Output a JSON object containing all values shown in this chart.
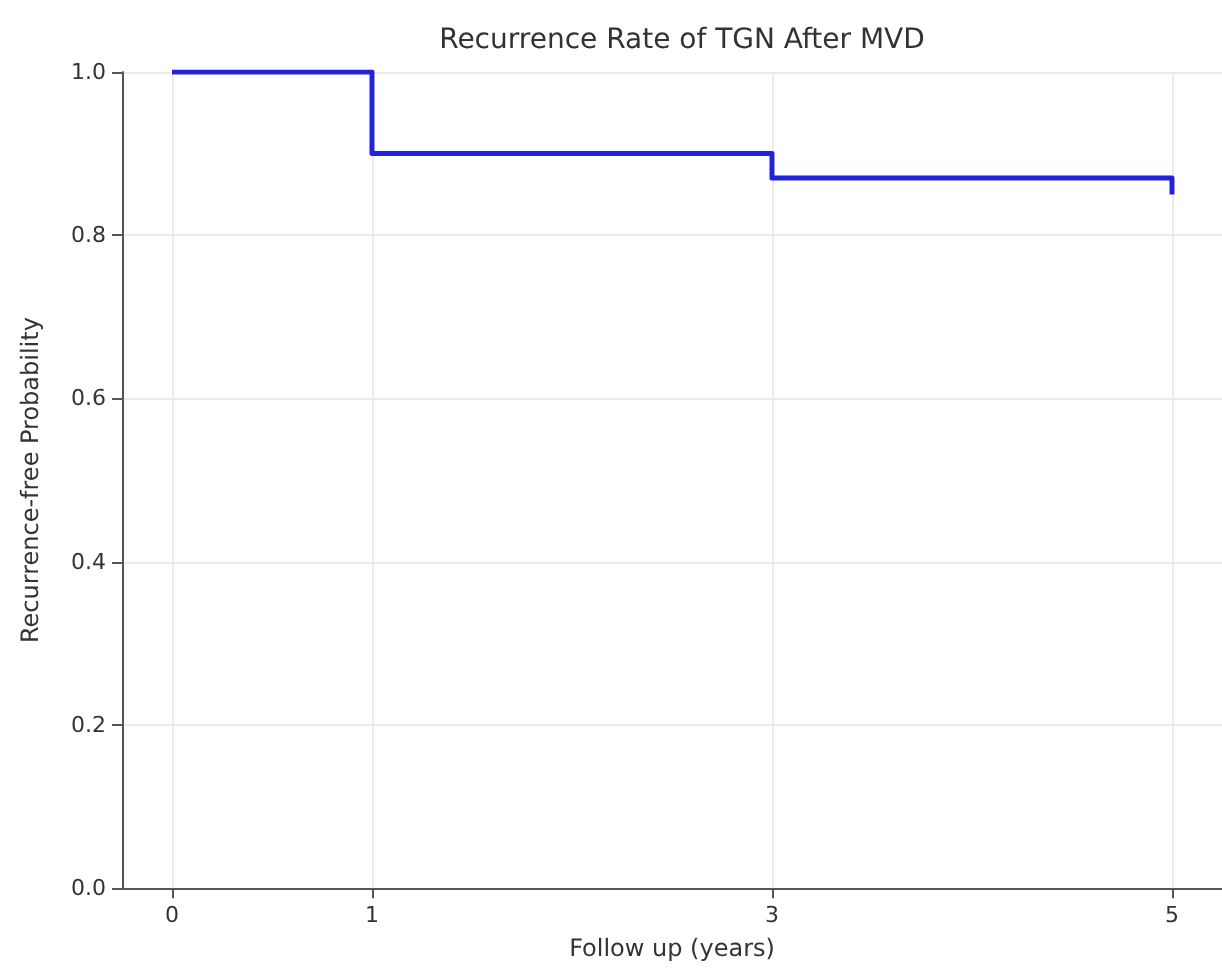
{
  "chart_data": {
    "type": "step",
    "title": "Recurrence Rate of TGN After MVD",
    "xlabel": "Follow up (years)",
    "ylabel": "Recurrence-free Probability",
    "x": [
      0,
      1,
      3,
      5
    ],
    "series": [
      {
        "color": "#2222dd",
        "values": [
          1.0,
          0.9,
          0.87,
          0.85
        ]
      }
    ],
    "xlim": [
      -0.25,
      5.25
    ],
    "xticks": [
      0,
      1,
      3,
      5
    ],
    "ylim": [
      0,
      1.0
    ],
    "yticks": [
      {
        "value": 0,
        "label": "0.0"
      },
      0.2,
      0.4,
      0.6,
      0.8,
      {
        "value": 1,
        "label": "1.0"
      }
    ],
    "grid": true
  }
}
